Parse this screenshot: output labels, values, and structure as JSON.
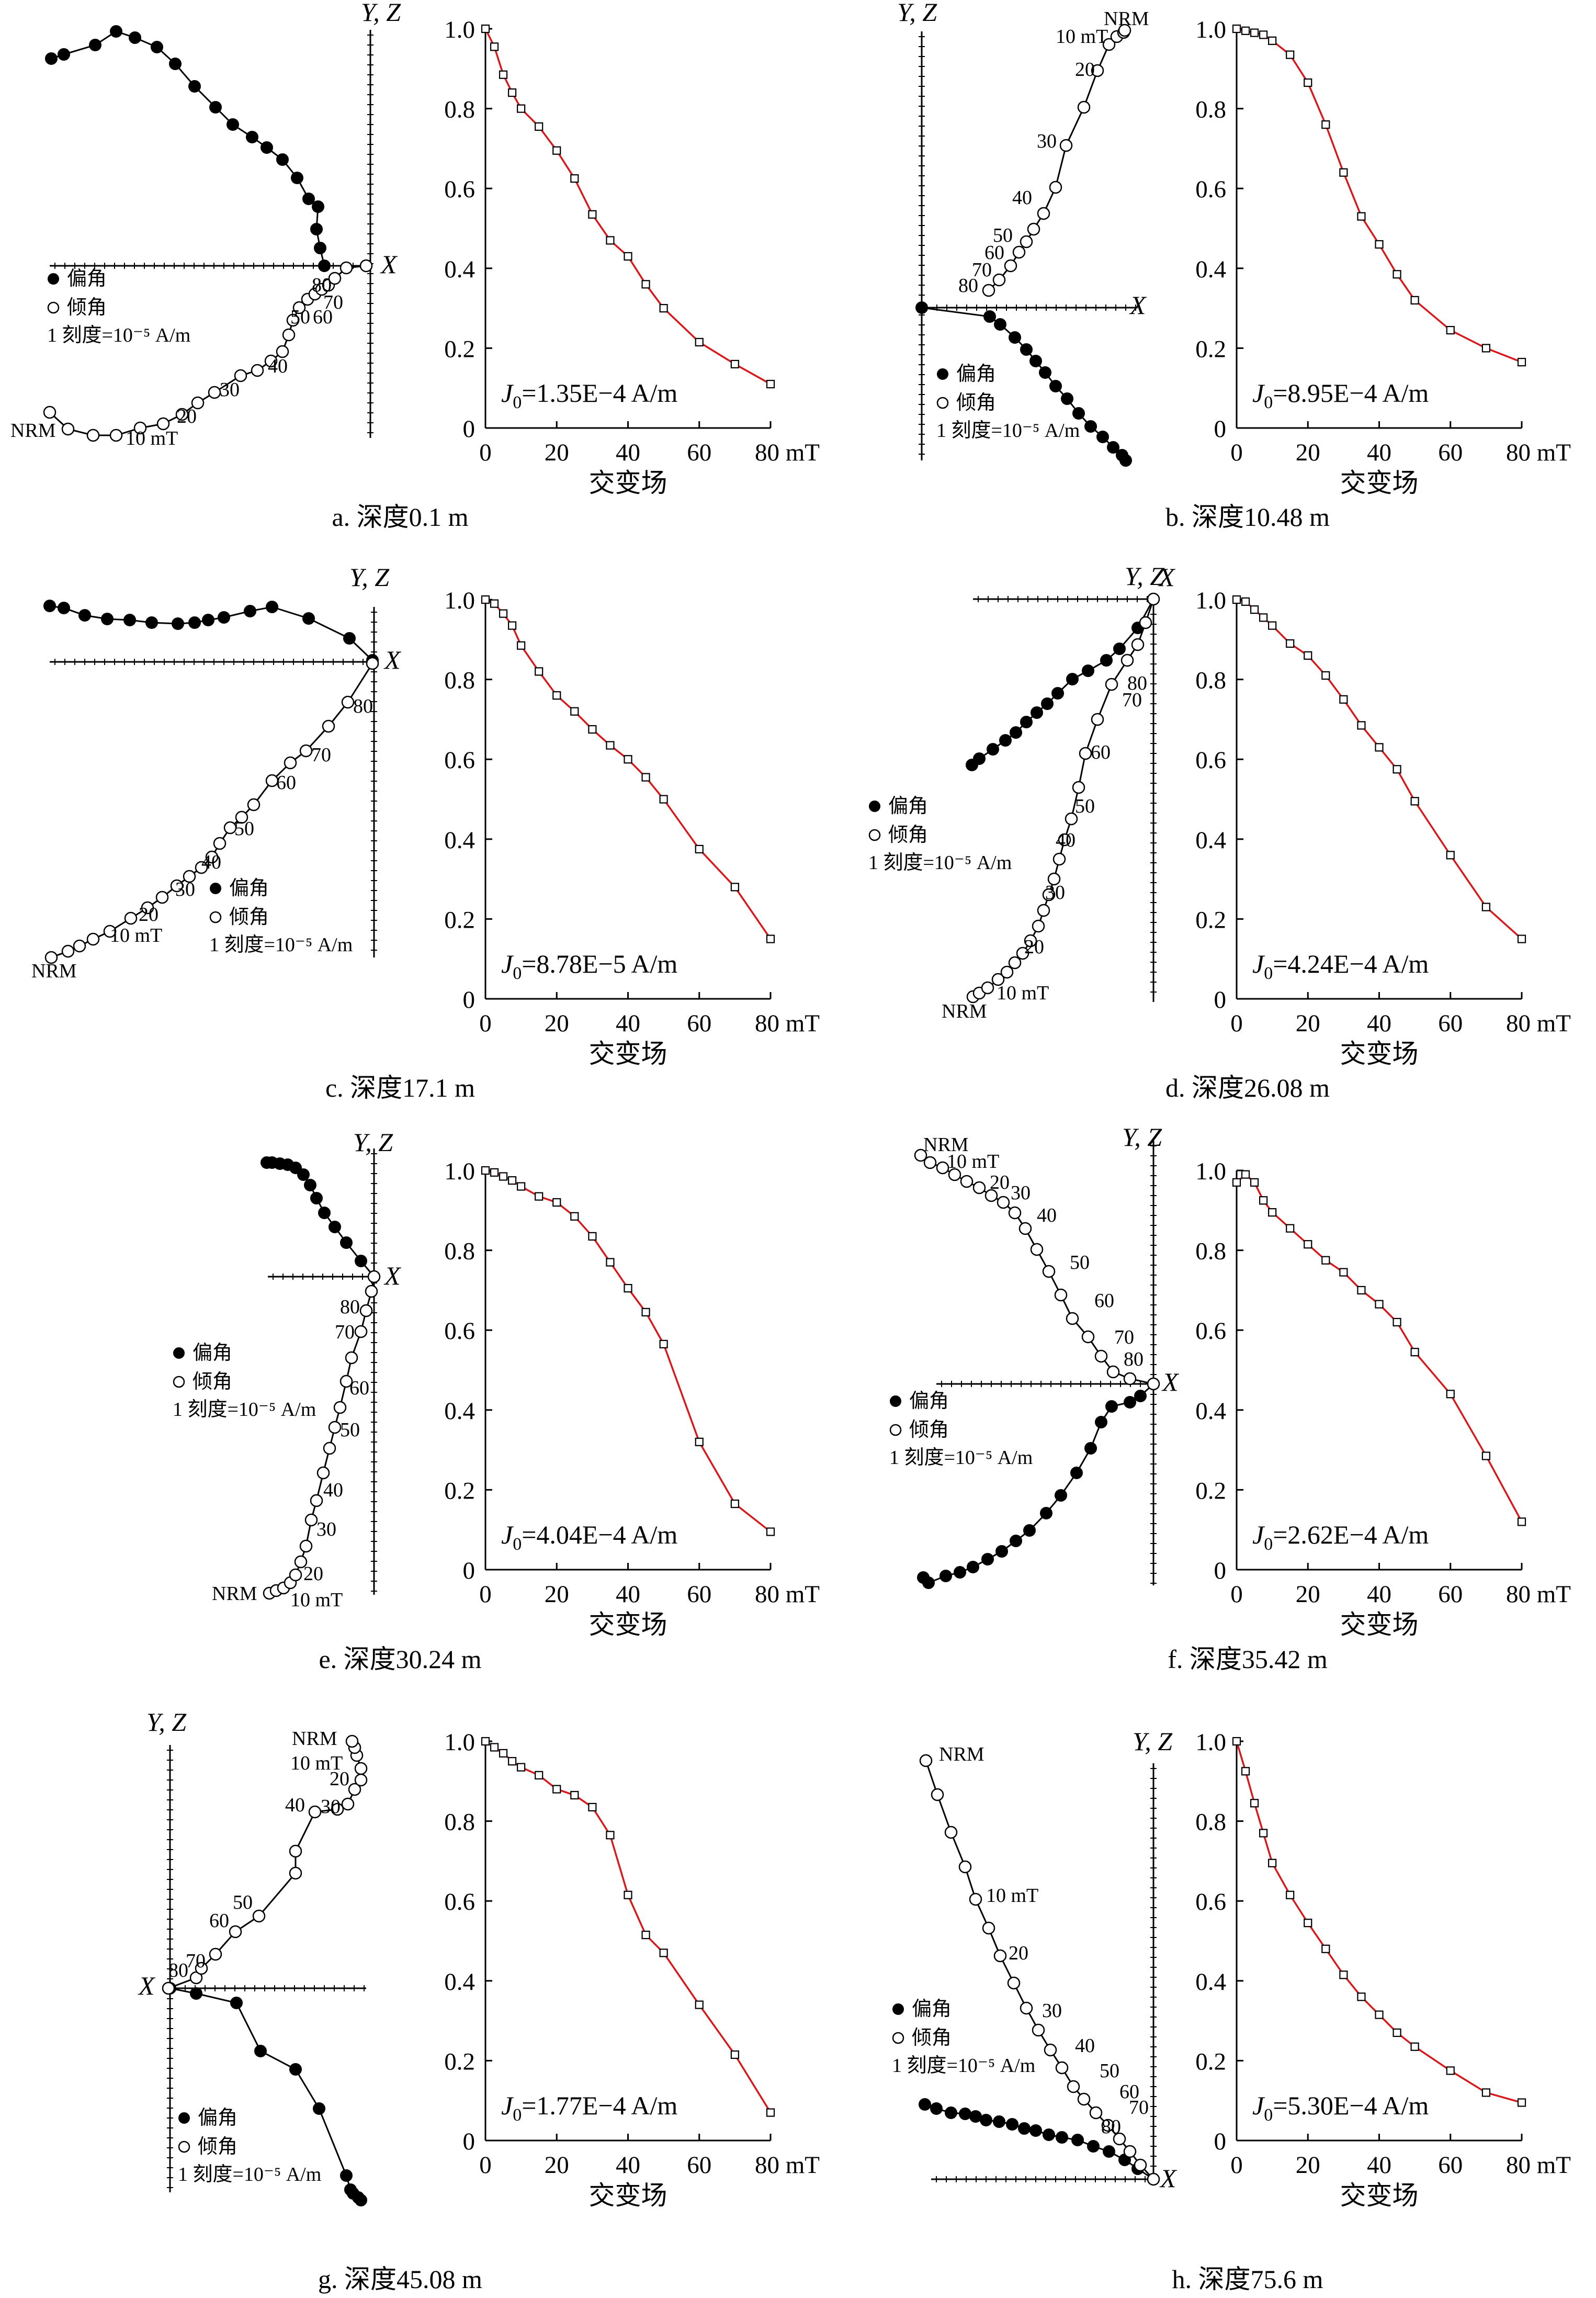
{
  "legend": {
    "declination": "偏角",
    "inclination": "倾角",
    "scale": "1 刻度=10⁻⁵ A/m"
  },
  "axis_labels": {
    "yz": "Y, Z",
    "x": "X",
    "field": "交变场",
    "field_unit": "80 mT"
  },
  "y_tick_labels": [
    "0",
    "0.2",
    "0.4",
    "0.6",
    "0.8",
    "1.0"
  ],
  "x_tick_labels": [
    "0",
    "20",
    "40",
    "60"
  ],
  "step_labels": {
    "nrm": "NRM",
    "ten": "10 mT",
    "others": [
      "20",
      "30",
      "40",
      "50",
      "60",
      "70",
      "80"
    ]
  },
  "colors": {
    "demag_curve": "#d7191c",
    "axes": "#000000",
    "open_marker": "#ffffff",
    "filled_marker": "#000000"
  },
  "chart_data": [
    {
      "id": "a",
      "type": "line",
      "caption": "a. 深度0.1 m",
      "j0": "J0=1.35E−4 A/m",
      "j0_parts": {
        "prefix": "J",
        "sub": "0",
        "value": "=1.35E−4 A/m"
      },
      "xlabel": "交变场",
      "xlim": [
        0,
        80
      ],
      "ylim": [
        0,
        1.0
      ],
      "x": [
        0,
        2.5,
        5,
        7.5,
        10,
        15,
        20,
        25,
        30,
        35,
        40,
        45,
        50,
        60,
        70,
        80
      ],
      "values": [
        1.0,
        0.955,
        0.885,
        0.84,
        0.8,
        0.755,
        0.695,
        0.625,
        0.535,
        0.47,
        0.43,
        0.36,
        0.3,
        0.215,
        0.16,
        0.11
      ]
    },
    {
      "id": "b",
      "type": "line",
      "caption": "b. 深度10.48 m",
      "j0": "J0=8.95E−4 A/m",
      "j0_parts": {
        "prefix": "J",
        "sub": "0",
        "value": "=8.95E−4 A/m"
      },
      "xlabel": "交变场",
      "xlim": [
        0,
        80
      ],
      "ylim": [
        0,
        1.0
      ],
      "x": [
        0,
        2.5,
        5,
        7.5,
        10,
        15,
        20,
        25,
        30,
        35,
        40,
        45,
        50,
        60,
        70,
        80
      ],
      "values": [
        1.0,
        0.995,
        0.99,
        0.985,
        0.97,
        0.935,
        0.865,
        0.76,
        0.64,
        0.53,
        0.46,
        0.385,
        0.32,
        0.245,
        0.2,
        0.165
      ]
    },
    {
      "id": "c",
      "type": "line",
      "caption": "c. 深度17.1 m",
      "j0": "J0=8.78E−5 A/m",
      "j0_parts": {
        "prefix": "J",
        "sub": "0",
        "value": "=8.78E−5 A/m"
      },
      "xlabel": "交变场",
      "xlim": [
        0,
        80
      ],
      "ylim": [
        0,
        1.0
      ],
      "x": [
        0,
        2.5,
        5,
        7.5,
        10,
        15,
        20,
        25,
        30,
        35,
        40,
        45,
        50,
        60,
        70,
        80
      ],
      "values": [
        1.0,
        0.99,
        0.965,
        0.935,
        0.885,
        0.82,
        0.76,
        0.72,
        0.675,
        0.635,
        0.6,
        0.555,
        0.5,
        0.375,
        0.28,
        0.15
      ]
    },
    {
      "id": "d",
      "type": "line",
      "caption": "d. 深度26.08 m",
      "j0": "J0=4.24E−4 A/m",
      "j0_parts": {
        "prefix": "J",
        "sub": "0",
        "value": "=4.24E−4 A/m"
      },
      "xlabel": "交变场",
      "xlim": [
        0,
        80
      ],
      "ylim": [
        0,
        1.0
      ],
      "x": [
        0,
        2.5,
        5,
        7.5,
        10,
        15,
        20,
        25,
        30,
        35,
        40,
        45,
        50,
        60,
        70,
        80
      ],
      "values": [
        1.0,
        0.995,
        0.975,
        0.955,
        0.935,
        0.89,
        0.86,
        0.81,
        0.75,
        0.685,
        0.63,
        0.575,
        0.495,
        0.36,
        0.23,
        0.15
      ]
    },
    {
      "id": "e",
      "type": "line",
      "caption": "e. 深度30.24 m",
      "j0": "J0=4.04E−4 A/m",
      "j0_parts": {
        "prefix": "J",
        "sub": "0",
        "value": "=4.04E−4 A/m"
      },
      "xlabel": "交变场",
      "xlim": [
        0,
        80
      ],
      "ylim": [
        0,
        1.0
      ],
      "x": [
        0,
        2.5,
        5,
        7.5,
        10,
        15,
        20,
        25,
        30,
        35,
        40,
        45,
        50,
        60,
        70,
        80
      ],
      "values": [
        1.0,
        0.995,
        0.985,
        0.975,
        0.96,
        0.935,
        0.92,
        0.885,
        0.835,
        0.77,
        0.705,
        0.645,
        0.565,
        0.32,
        0.165,
        0.095
      ]
    },
    {
      "id": "f",
      "type": "line",
      "caption": "f. 深度35.42 m",
      "j0": "J0=2.62E−4 A/m",
      "j0_parts": {
        "prefix": "J",
        "sub": "0",
        "value": "=2.62E−4 A/m"
      },
      "xlabel": "交变场",
      "xlim": [
        0,
        80
      ],
      "ylim": [
        0,
        1.0
      ],
      "x": [
        0,
        2.5,
        5,
        7.5,
        10,
        15,
        20,
        25,
        30,
        35,
        40,
        45,
        50,
        60,
        70,
        80
      ],
      "values": [
        0.97,
        0.99,
        0.97,
        0.925,
        0.895,
        0.855,
        0.815,
        0.775,
        0.745,
        0.7,
        0.665,
        0.62,
        0.545,
        0.44,
        0.285,
        0.12
      ]
    },
    {
      "id": "g",
      "type": "line",
      "caption": "g. 深度45.08 m",
      "j0": "J0=1.77E−4 A/m",
      "j0_parts": {
        "prefix": "J",
        "sub": "0",
        "value": "=1.77E−4 A/m"
      },
      "xlabel": "交变场",
      "xlim": [
        0,
        80
      ],
      "ylim": [
        0,
        1.0
      ],
      "x": [
        0,
        2.5,
        5,
        7.5,
        10,
        15,
        20,
        25,
        30,
        35,
        40,
        45,
        50,
        60,
        70,
        80
      ],
      "values": [
        1.0,
        0.985,
        0.97,
        0.95,
        0.935,
        0.915,
        0.88,
        0.865,
        0.835,
        0.765,
        0.615,
        0.515,
        0.47,
        0.34,
        0.215,
        0.07
      ]
    },
    {
      "id": "h",
      "type": "line",
      "caption": "h. 深度75.6 m",
      "j0": "J0=5.30E−4 A/m",
      "j0_parts": {
        "prefix": "J",
        "sub": "0",
        "value": "=5.30E−4 A/m"
      },
      "xlabel": "交变场",
      "xlim": [
        0,
        80
      ],
      "ylim": [
        0,
        1.0
      ],
      "x": [
        0,
        2.5,
        5,
        7.5,
        10,
        15,
        20,
        25,
        30,
        35,
        40,
        45,
        50,
        60,
        70,
        80
      ],
      "values": [
        1.0,
        0.925,
        0.845,
        0.77,
        0.695,
        0.615,
        0.545,
        0.48,
        0.415,
        0.36,
        0.315,
        0.27,
        0.235,
        0.175,
        0.12,
        0.095
      ]
    }
  ]
}
